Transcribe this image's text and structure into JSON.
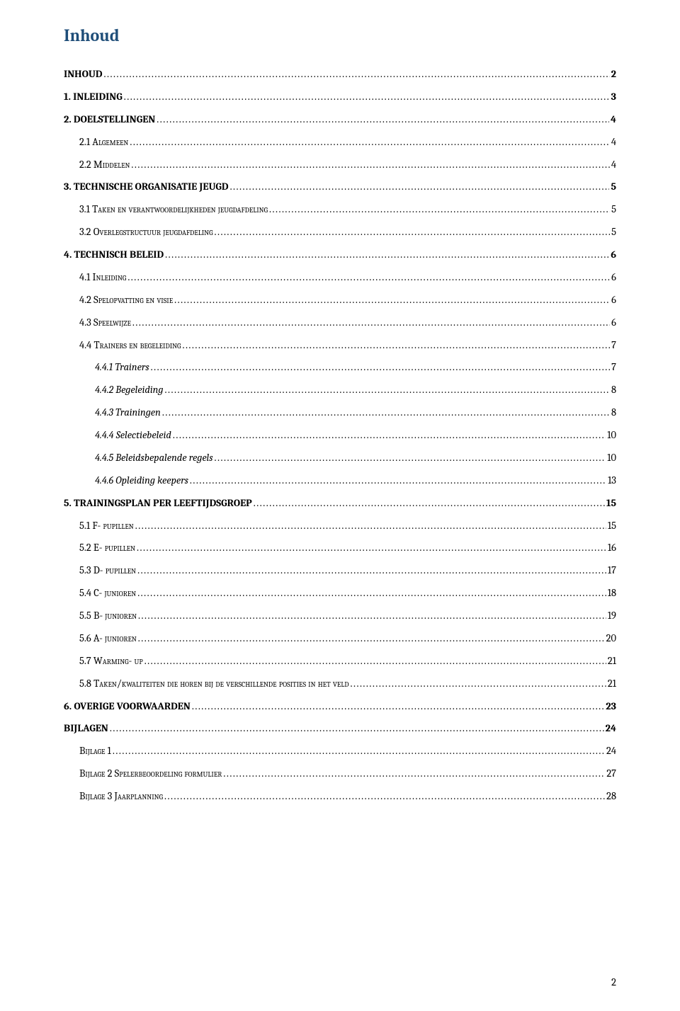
{
  "title": "Inhoud",
  "title_color": "#1f4e79",
  "page_number": "2",
  "entries": [
    {
      "label": "INHOUD",
      "page": "2",
      "indent": 0,
      "bold": true,
      "italic": false,
      "smallcaps": false
    },
    {
      "label": "1. INLEIDING",
      "page": "3",
      "indent": 0,
      "bold": true,
      "italic": false,
      "smallcaps": false
    },
    {
      "label": "2. DOELSTELLINGEN",
      "page": "4",
      "indent": 0,
      "bold": true,
      "italic": false,
      "smallcaps": false
    },
    {
      "label": "2.1 Algemeen",
      "page": "4",
      "indent": 1,
      "bold": false,
      "italic": false,
      "smallcaps": true
    },
    {
      "label": "2.2 Middelen",
      "page": "4",
      "indent": 1,
      "bold": false,
      "italic": false,
      "smallcaps": true
    },
    {
      "label": "3. TECHNISCHE ORGANISATIE JEUGD",
      "page": "5",
      "indent": 0,
      "bold": true,
      "italic": false,
      "smallcaps": false
    },
    {
      "label": "3.1 Taken en verantwoordelijkheden jeugdafdeling",
      "page": "5",
      "indent": 1,
      "bold": false,
      "italic": false,
      "smallcaps": true
    },
    {
      "label": "3.2 Overlegstructuur jeugdafdeling",
      "page": "5",
      "indent": 1,
      "bold": false,
      "italic": false,
      "smallcaps": true
    },
    {
      "label": "4. TECHNISCH BELEID",
      "page": "6",
      "indent": 0,
      "bold": true,
      "italic": false,
      "smallcaps": false
    },
    {
      "label": "4.1 Inleiding",
      "page": "6",
      "indent": 1,
      "bold": false,
      "italic": false,
      "smallcaps": true
    },
    {
      "label": "4.2 Spelopvatting en visie",
      "page": "6",
      "indent": 1,
      "bold": false,
      "italic": false,
      "smallcaps": true
    },
    {
      "label": "4.3 Speelwijze",
      "page": "6",
      "indent": 1,
      "bold": false,
      "italic": false,
      "smallcaps": true
    },
    {
      "label": "4.4 Trainers en begeleiding",
      "page": "7",
      "indent": 1,
      "bold": false,
      "italic": false,
      "smallcaps": true
    },
    {
      "label": "4.4.1 Trainers",
      "page": "7",
      "indent": 2,
      "bold": false,
      "italic": true,
      "smallcaps": false
    },
    {
      "label": "4.4.2 Begeleiding",
      "page": "8",
      "indent": 2,
      "bold": false,
      "italic": true,
      "smallcaps": false
    },
    {
      "label": "4.4.3 Trainingen",
      "page": "8",
      "indent": 2,
      "bold": false,
      "italic": true,
      "smallcaps": false
    },
    {
      "label": "4.4.4 Selectiebeleid",
      "page": "10",
      "indent": 2,
      "bold": false,
      "italic": true,
      "smallcaps": false
    },
    {
      "label": "4.4.5 Beleidsbepalende regels",
      "page": "10",
      "indent": 2,
      "bold": false,
      "italic": true,
      "smallcaps": false
    },
    {
      "label": "4.4.6 Opleiding keepers",
      "page": "13",
      "indent": 2,
      "bold": false,
      "italic": true,
      "smallcaps": false
    },
    {
      "label": "5. TRAININGSPLAN PER LEEFTIJDSGROEP",
      "page": "15",
      "indent": 0,
      "bold": true,
      "italic": false,
      "smallcaps": false
    },
    {
      "label": "5.1 F- pupillen",
      "page": "15",
      "indent": 1,
      "bold": false,
      "italic": false,
      "smallcaps": true
    },
    {
      "label": "5.2 E- pupillen",
      "page": "16",
      "indent": 1,
      "bold": false,
      "italic": false,
      "smallcaps": true
    },
    {
      "label": "5.3 D- pupillen",
      "page": "17",
      "indent": 1,
      "bold": false,
      "italic": false,
      "smallcaps": true
    },
    {
      "label": "5.4 C- junioren",
      "page": "18",
      "indent": 1,
      "bold": false,
      "italic": false,
      "smallcaps": true
    },
    {
      "label": "5.5 B- junioren",
      "page": "19",
      "indent": 1,
      "bold": false,
      "italic": false,
      "smallcaps": true
    },
    {
      "label": "5.6 A- junioren",
      "page": "20",
      "indent": 1,
      "bold": false,
      "italic": false,
      "smallcaps": true
    },
    {
      "label": "5.7 Warming- up",
      "page": "21",
      "indent": 1,
      "bold": false,
      "italic": false,
      "smallcaps": true
    },
    {
      "label": "5.8 Taken/kwaliteiten die horen bij de verschillende posities in het veld",
      "page": "21",
      "indent": 1,
      "bold": false,
      "italic": false,
      "smallcaps": true
    },
    {
      "label": "6. OVERIGE VOORWAARDEN",
      "page": "23",
      "indent": 0,
      "bold": true,
      "italic": false,
      "smallcaps": false
    },
    {
      "label": "BIJLAGEN",
      "page": "24",
      "indent": 0,
      "bold": true,
      "italic": false,
      "smallcaps": false
    },
    {
      "label": "Bijlage 1",
      "page": "24",
      "indent": 1,
      "bold": false,
      "italic": false,
      "smallcaps": true
    },
    {
      "label": "Bijlage 2 Spelerbeoordeling formulier",
      "page": "27",
      "indent": 1,
      "bold": false,
      "italic": false,
      "smallcaps": true
    },
    {
      "label": "Bijlage 3 Jaarplanning",
      "page": "28",
      "indent": 1,
      "bold": false,
      "italic": false,
      "smallcaps": true
    }
  ]
}
